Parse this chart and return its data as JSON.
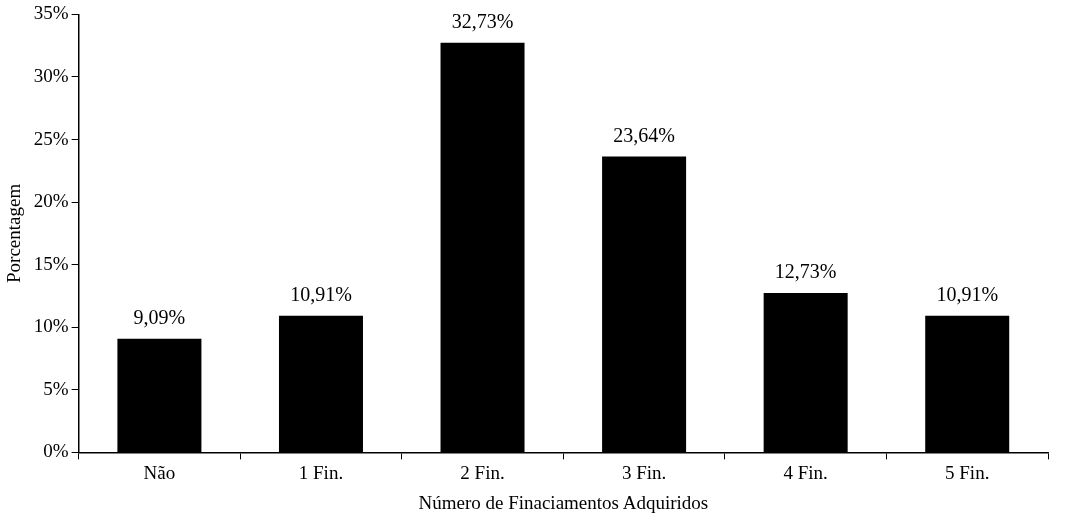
{
  "chart_data": {
    "type": "bar",
    "xlabel": "Número de Finaciamentos Adquiridos",
    "ylabel": "Porcentagem",
    "categories": [
      "Não",
      "1 Fin.",
      "2 Fin.",
      "3 Fin.",
      "4 Fin.",
      "5 Fin."
    ],
    "values": [
      9.09,
      10.91,
      32.73,
      23.64,
      12.73,
      10.91
    ],
    "value_labels": [
      "9,09%",
      "10,91%",
      "32,73%",
      "23,64%",
      "12,73%",
      "10,91%"
    ],
    "color": "#000000",
    "ylim": [
      0,
      35
    ],
    "yticks": [
      {
        "value": 0,
        "label": "0%"
      },
      {
        "value": 5,
        "label": "5%"
      },
      {
        "value": 10,
        "label": "10%"
      },
      {
        "value": 15,
        "label": "15%"
      },
      {
        "value": 20,
        "label": "20%"
      },
      {
        "value": 25,
        "label": "25%"
      },
      {
        "value": 30,
        "label": "30%"
      },
      {
        "value": 35,
        "label": "35%"
      }
    ],
    "grid": false,
    "legend": false
  }
}
